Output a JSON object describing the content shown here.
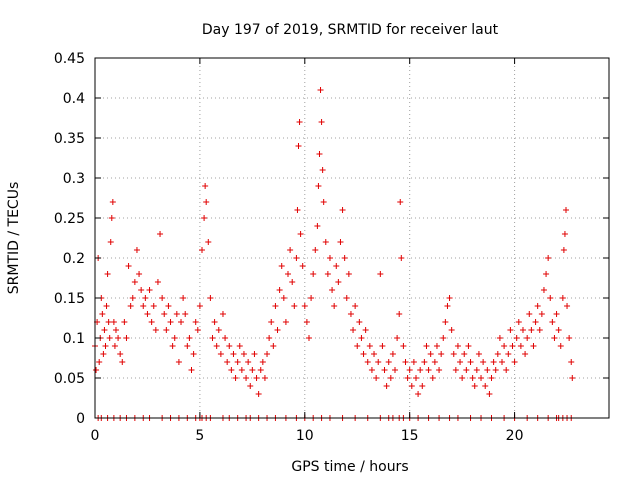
{
  "chart_data": {
    "type": "scatter",
    "title": "Day 197 of 2019, SRMTID for receiver laut",
    "xlabel": "GPS time / hours",
    "ylabel": "SRMTID / TECUs",
    "xlim": [
      0,
      24.5
    ],
    "ylim": [
      0,
      0.45
    ],
    "x_ticks": [
      0,
      5,
      10,
      15,
      20
    ],
    "y_ticks": [
      0,
      0.05,
      0.1,
      0.15,
      0.2,
      0.25,
      0.3,
      0.35,
      0.4,
      0.45
    ],
    "x_tick_labels": [
      "0",
      "5",
      "10",
      "15",
      "20"
    ],
    "y_tick_labels": [
      "0",
      "0.05",
      "0.1",
      "0.15",
      "0.2",
      "0.25",
      "0.3",
      "0.35",
      "0.4",
      "0.45"
    ],
    "grid": true,
    "marker": "+",
    "color": "#e00000",
    "series": [
      {
        "name": "SRMTID",
        "points": [
          [
            0.0,
            0.09
          ],
          [
            0.05,
            0.06
          ],
          [
            0.1,
            0.12
          ],
          [
            0.15,
            0.2
          ],
          [
            0.2,
            0.07
          ],
          [
            0.25,
            0.1
          ],
          [
            0.3,
            0.15
          ],
          [
            0.35,
            0.13
          ],
          [
            0.4,
            0.08
          ],
          [
            0.45,
            0.11
          ],
          [
            0.5,
            0.09
          ],
          [
            0.55,
            0.14
          ],
          [
            0.6,
            0.18
          ],
          [
            0.65,
            0.12
          ],
          [
            0.7,
            0.1
          ],
          [
            0.75,
            0.22
          ],
          [
            0.8,
            0.25
          ],
          [
            0.85,
            0.27
          ],
          [
            0.9,
            0.12
          ],
          [
            0.95,
            0.09
          ],
          [
            1.0,
            0.11
          ],
          [
            1.1,
            0.1
          ],
          [
            1.2,
            0.08
          ],
          [
            1.3,
            0.07
          ],
          [
            1.4,
            0.12
          ],
          [
            1.5,
            0.1
          ],
          [
            1.6,
            0.19
          ],
          [
            1.7,
            0.14
          ],
          [
            1.8,
            0.15
          ],
          [
            1.9,
            0.17
          ],
          [
            2.0,
            0.21
          ],
          [
            2.1,
            0.18
          ],
          [
            2.2,
            0.16
          ],
          [
            2.3,
            0.14
          ],
          [
            2.4,
            0.15
          ],
          [
            2.5,
            0.13
          ],
          [
            2.6,
            0.16
          ],
          [
            2.7,
            0.12
          ],
          [
            2.8,
            0.14
          ],
          [
            2.9,
            0.11
          ],
          [
            3.0,
            0.17
          ],
          [
            3.1,
            0.23
          ],
          [
            3.2,
            0.15
          ],
          [
            3.3,
            0.13
          ],
          [
            3.4,
            0.11
          ],
          [
            3.5,
            0.14
          ],
          [
            3.6,
            0.12
          ],
          [
            3.7,
            0.09
          ],
          [
            3.8,
            0.1
          ],
          [
            3.9,
            0.13
          ],
          [
            4.0,
            0.07
          ],
          [
            4.1,
            0.12
          ],
          [
            4.2,
            0.15
          ],
          [
            4.3,
            0.13
          ],
          [
            4.4,
            0.09
          ],
          [
            4.5,
            0.1
          ],
          [
            4.6,
            0.06
          ],
          [
            4.7,
            0.08
          ],
          [
            4.8,
            0.12
          ],
          [
            4.9,
            0.11
          ],
          [
            5.0,
            0.14
          ],
          [
            5.1,
            0.21
          ],
          [
            5.2,
            0.25
          ],
          [
            5.25,
            0.29
          ],
          [
            5.3,
            0.27
          ],
          [
            5.4,
            0.22
          ],
          [
            5.5,
            0.15
          ],
          [
            5.6,
            0.1
          ],
          [
            5.7,
            0.12
          ],
          [
            5.8,
            0.09
          ],
          [
            5.9,
            0.11
          ],
          [
            6.0,
            0.08
          ],
          [
            6.1,
            0.13
          ],
          [
            6.2,
            0.1
          ],
          [
            6.3,
            0.07
          ],
          [
            6.4,
            0.09
          ],
          [
            6.5,
            0.06
          ],
          [
            6.6,
            0.08
          ],
          [
            6.7,
            0.05
          ],
          [
            6.8,
            0.07
          ],
          [
            6.9,
            0.09
          ],
          [
            7.0,
            0.06
          ],
          [
            7.1,
            0.08
          ],
          [
            7.2,
            0.05
          ],
          [
            7.3,
            0.07
          ],
          [
            7.4,
            0.04
          ],
          [
            7.5,
            0.06
          ],
          [
            7.6,
            0.08
          ],
          [
            7.7,
            0.05
          ],
          [
            7.8,
            0.03
          ],
          [
            7.9,
            0.06
          ],
          [
            8.0,
            0.07
          ],
          [
            8.1,
            0.05
          ],
          [
            8.2,
            0.08
          ],
          [
            8.3,
            0.1
          ],
          [
            8.4,
            0.12
          ],
          [
            8.5,
            0.09
          ],
          [
            8.6,
            0.14
          ],
          [
            8.7,
            0.11
          ],
          [
            8.8,
            0.16
          ],
          [
            8.9,
            0.19
          ],
          [
            9.0,
            0.15
          ],
          [
            9.1,
            0.12
          ],
          [
            9.2,
            0.18
          ],
          [
            9.3,
            0.21
          ],
          [
            9.4,
            0.17
          ],
          [
            9.5,
            0.14
          ],
          [
            9.6,
            0.2
          ],
          [
            9.65,
            0.26
          ],
          [
            9.7,
            0.34
          ],
          [
            9.75,
            0.37
          ],
          [
            9.8,
            0.23
          ],
          [
            9.9,
            0.19
          ],
          [
            10.0,
            0.14
          ],
          [
            10.1,
            0.12
          ],
          [
            10.2,
            0.1
          ],
          [
            10.3,
            0.15
          ],
          [
            10.4,
            0.18
          ],
          [
            10.5,
            0.21
          ],
          [
            10.6,
            0.24
          ],
          [
            10.65,
            0.29
          ],
          [
            10.7,
            0.33
          ],
          [
            10.75,
            0.41
          ],
          [
            10.8,
            0.37
          ],
          [
            10.85,
            0.31
          ],
          [
            10.9,
            0.27
          ],
          [
            11.0,
            0.22
          ],
          [
            11.1,
            0.18
          ],
          [
            11.2,
            0.2
          ],
          [
            11.3,
            0.16
          ],
          [
            11.4,
            0.14
          ],
          [
            11.5,
            0.19
          ],
          [
            11.6,
            0.17
          ],
          [
            11.7,
            0.22
          ],
          [
            11.8,
            0.26
          ],
          [
            11.9,
            0.2
          ],
          [
            12.0,
            0.15
          ],
          [
            12.1,
            0.18
          ],
          [
            12.2,
            0.13
          ],
          [
            12.3,
            0.11
          ],
          [
            12.4,
            0.14
          ],
          [
            12.5,
            0.09
          ],
          [
            12.6,
            0.12
          ],
          [
            12.7,
            0.1
          ],
          [
            12.8,
            0.08
          ],
          [
            12.9,
            0.11
          ],
          [
            13.0,
            0.07
          ],
          [
            13.1,
            0.09
          ],
          [
            13.2,
            0.06
          ],
          [
            13.3,
            0.08
          ],
          [
            13.4,
            0.05
          ],
          [
            13.5,
            0.07
          ],
          [
            13.6,
            0.18
          ],
          [
            13.7,
            0.09
          ],
          [
            13.8,
            0.06
          ],
          [
            13.9,
            0.04
          ],
          [
            14.0,
            0.07
          ],
          [
            14.1,
            0.05
          ],
          [
            14.2,
            0.08
          ],
          [
            14.3,
            0.06
          ],
          [
            14.4,
            0.1
          ],
          [
            14.5,
            0.13
          ],
          [
            14.55,
            0.27
          ],
          [
            14.6,
            0.2
          ],
          [
            14.7,
            0.09
          ],
          [
            14.8,
            0.07
          ],
          [
            14.9,
            0.05
          ],
          [
            15.0,
            0.06
          ],
          [
            15.1,
            0.04
          ],
          [
            15.2,
            0.07
          ],
          [
            15.3,
            0.05
          ],
          [
            15.4,
            0.03
          ],
          [
            15.5,
            0.06
          ],
          [
            15.6,
            0.04
          ],
          [
            15.7,
            0.07
          ],
          [
            15.8,
            0.09
          ],
          [
            15.9,
            0.06
          ],
          [
            16.0,
            0.08
          ],
          [
            16.1,
            0.05
          ],
          [
            16.2,
            0.07
          ],
          [
            16.3,
            0.09
          ],
          [
            16.4,
            0.06
          ],
          [
            16.5,
            0.08
          ],
          [
            16.6,
            0.1
          ],
          [
            16.7,
            0.12
          ],
          [
            16.8,
            0.14
          ],
          [
            16.9,
            0.15
          ],
          [
            17.0,
            0.11
          ],
          [
            17.1,
            0.08
          ],
          [
            17.2,
            0.06
          ],
          [
            17.3,
            0.09
          ],
          [
            17.4,
            0.07
          ],
          [
            17.5,
            0.05
          ],
          [
            17.6,
            0.08
          ],
          [
            17.7,
            0.06
          ],
          [
            17.8,
            0.09
          ],
          [
            17.9,
            0.07
          ],
          [
            18.0,
            0.05
          ],
          [
            18.1,
            0.04
          ],
          [
            18.2,
            0.06
          ],
          [
            18.3,
            0.08
          ],
          [
            18.4,
            0.05
          ],
          [
            18.5,
            0.07
          ],
          [
            18.6,
            0.04
          ],
          [
            18.7,
            0.06
          ],
          [
            18.8,
            0.03
          ],
          [
            18.9,
            0.05
          ],
          [
            19.0,
            0.07
          ],
          [
            19.1,
            0.06
          ],
          [
            19.2,
            0.08
          ],
          [
            19.3,
            0.1
          ],
          [
            19.4,
            0.07
          ],
          [
            19.5,
            0.09
          ],
          [
            19.6,
            0.06
          ],
          [
            19.7,
            0.08
          ],
          [
            19.8,
            0.11
          ],
          [
            19.9,
            0.09
          ],
          [
            20.0,
            0.07
          ],
          [
            20.1,
            0.1
          ],
          [
            20.2,
            0.12
          ],
          [
            20.3,
            0.09
          ],
          [
            20.4,
            0.11
          ],
          [
            20.5,
            0.08
          ],
          [
            20.6,
            0.1
          ],
          [
            20.7,
            0.13
          ],
          [
            20.8,
            0.11
          ],
          [
            20.9,
            0.09
          ],
          [
            21.0,
            0.12
          ],
          [
            21.1,
            0.14
          ],
          [
            21.2,
            0.11
          ],
          [
            21.3,
            0.13
          ],
          [
            21.4,
            0.16
          ],
          [
            21.5,
            0.18
          ],
          [
            21.6,
            0.2
          ],
          [
            21.7,
            0.15
          ],
          [
            21.8,
            0.12
          ],
          [
            21.9,
            0.1
          ],
          [
            22.0,
            0.13
          ],
          [
            22.1,
            0.11
          ],
          [
            22.2,
            0.09
          ],
          [
            22.3,
            0.15
          ],
          [
            22.35,
            0.21
          ],
          [
            22.4,
            0.23
          ],
          [
            22.45,
            0.26
          ],
          [
            22.5,
            0.14
          ],
          [
            22.6,
            0.1
          ],
          [
            22.7,
            0.07
          ],
          [
            22.75,
            0.05
          ]
        ]
      },
      {
        "name": "zero-markers",
        "x": [
          0.15,
          0.3,
          0.6,
          0.9,
          1.2,
          1.5,
          1.9,
          2.3,
          2.6,
          3.2,
          3.6,
          4.0,
          4.4,
          4.8,
          5.0,
          5.1,
          5.3,
          5.5,
          6.1,
          6.4,
          6.8,
          7.2,
          7.4,
          7.8,
          8.2,
          8.6,
          9.1,
          9.6,
          10.0,
          10.4,
          10.8,
          11.2,
          11.8,
          12.4,
          13.0,
          13.6,
          14.0,
          14.2,
          14.5,
          14.7,
          15.0,
          15.4,
          15.9,
          16.4,
          16.9,
          17.3,
          17.9,
          18.4,
          18.9,
          19.5,
          20.0,
          20.6,
          21.1,
          21.6,
          22.0,
          22.1,
          22.3,
          22.5,
          22.7
        ]
      }
    ]
  }
}
